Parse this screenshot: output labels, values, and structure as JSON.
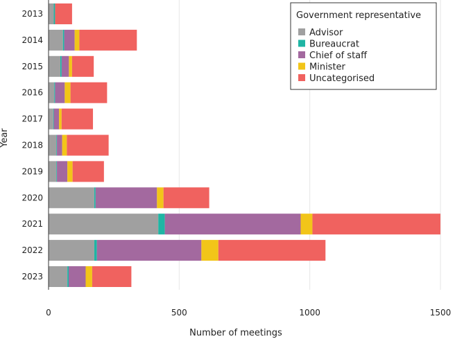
{
  "chart_data": {
    "type": "bar",
    "orientation": "horizontal",
    "stacked": true,
    "title": "",
    "xlabel": "Number of meetings",
    "ylabel": "Year",
    "xlim": [
      0,
      1500
    ],
    "xticks": [
      0,
      500,
      1000,
      1500
    ],
    "grid": "vertical",
    "legend_title": "Government representative",
    "legend_position": "top-right",
    "categories": [
      "2013",
      "2014",
      "2015",
      "2016",
      "2017",
      "2018",
      "2019",
      "2020",
      "2021",
      "2022",
      "2023"
    ],
    "series": [
      {
        "name": "Advisor",
        "color": "#a0a0a0",
        "values": [
          20,
          55,
          45,
          22,
          18,
          30,
          30,
          175,
          420,
          175,
          72
        ]
      },
      {
        "name": "Bureaucrat",
        "color": "#1fb5a4",
        "values": [
          5,
          5,
          5,
          3,
          2,
          2,
          2,
          5,
          25,
          10,
          5
        ]
      },
      {
        "name": "Chief of staff",
        "color": "#a3699f",
        "values": [
          0,
          40,
          28,
          37,
          20,
          20,
          40,
          235,
          520,
          400,
          65
        ]
      },
      {
        "name": "Minister",
        "color": "#f2c519",
        "values": [
          0,
          18,
          12,
          22,
          10,
          18,
          20,
          25,
          45,
          65,
          25
        ]
      },
      {
        "name": "Uncategorised",
        "color": "#f0625f",
        "values": [
          65,
          220,
          83,
          140,
          120,
          160,
          120,
          175,
          490,
          410,
          150
        ]
      }
    ]
  }
}
